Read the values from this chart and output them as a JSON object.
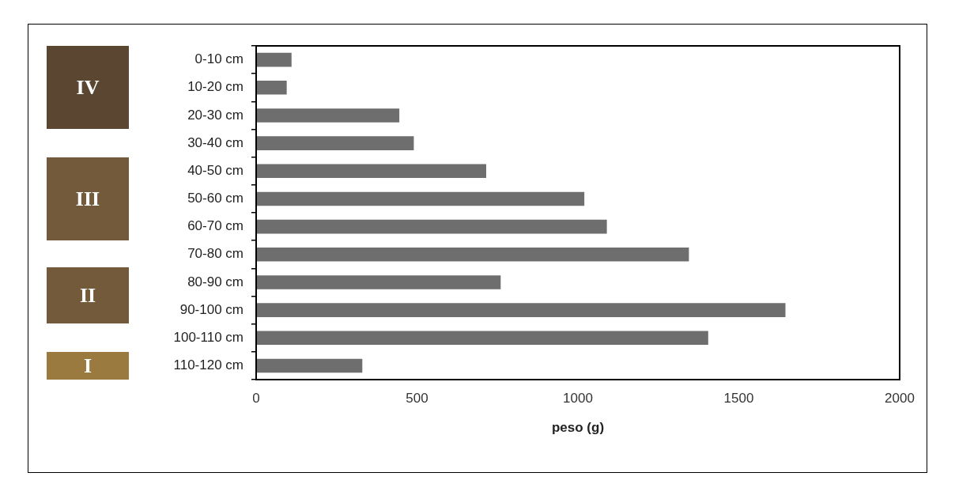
{
  "chart_data": {
    "type": "bar",
    "orientation": "horizontal",
    "xlabel": "peso (g)",
    "categories": [
      "0-10 cm",
      "10-20 cm",
      "20-30 cm",
      "30-40 cm",
      "40-50 cm",
      "50-60 cm",
      "60-70 cm",
      "70-80 cm",
      "80-90 cm",
      "90-100 cm",
      "100-110 cm",
      "110-120 cm"
    ],
    "values": [
      110,
      95,
      445,
      490,
      715,
      1020,
      1090,
      1345,
      760,
      1645,
      1405,
      330
    ],
    "color": "#6e6e6e",
    "xlim": [
      0,
      2000
    ],
    "xticks": [
      0,
      500,
      1000,
      1500,
      2000
    ],
    "grid": false,
    "legend": false,
    "annotations": [
      "IV",
      "III",
      "II",
      "I"
    ]
  }
}
